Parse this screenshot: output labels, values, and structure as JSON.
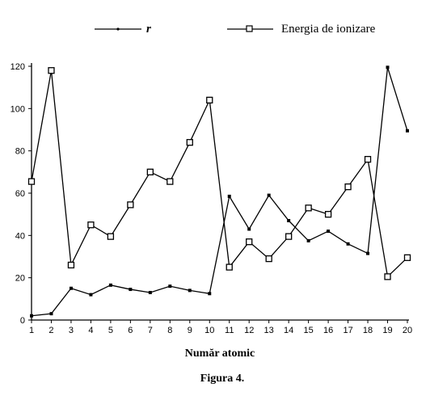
{
  "chart_data": {
    "type": "line",
    "x": [
      1,
      2,
      3,
      4,
      5,
      6,
      7,
      8,
      9,
      10,
      11,
      12,
      13,
      14,
      15,
      16,
      17,
      18,
      19,
      20
    ],
    "series": [
      {
        "name": "r",
        "marker": "dot",
        "color": "#000000",
        "values": [
          2,
          3,
          15,
          12,
          16.5,
          14.5,
          13,
          16,
          14,
          12.5,
          58.5,
          43,
          59,
          47,
          37.5,
          42,
          36,
          31.5,
          119.5,
          89.5
        ]
      },
      {
        "name": "Energia de ionizare",
        "marker": "square",
        "color": "#000000",
        "values": [
          65.5,
          118,
          26,
          45,
          39.5,
          54.5,
          70,
          65.5,
          84,
          104,
          25,
          37,
          29,
          39.5,
          53,
          50,
          63,
          76,
          20.5,
          29.5
        ]
      }
    ],
    "title": "",
    "xlabel": "Număr atomic",
    "ylabel": "",
    "ylim": [
      0,
      120
    ],
    "yticks": [
      0,
      20,
      40,
      60,
      80,
      100,
      120
    ],
    "grid": false,
    "legend": "top"
  },
  "caption": "Figura 4."
}
